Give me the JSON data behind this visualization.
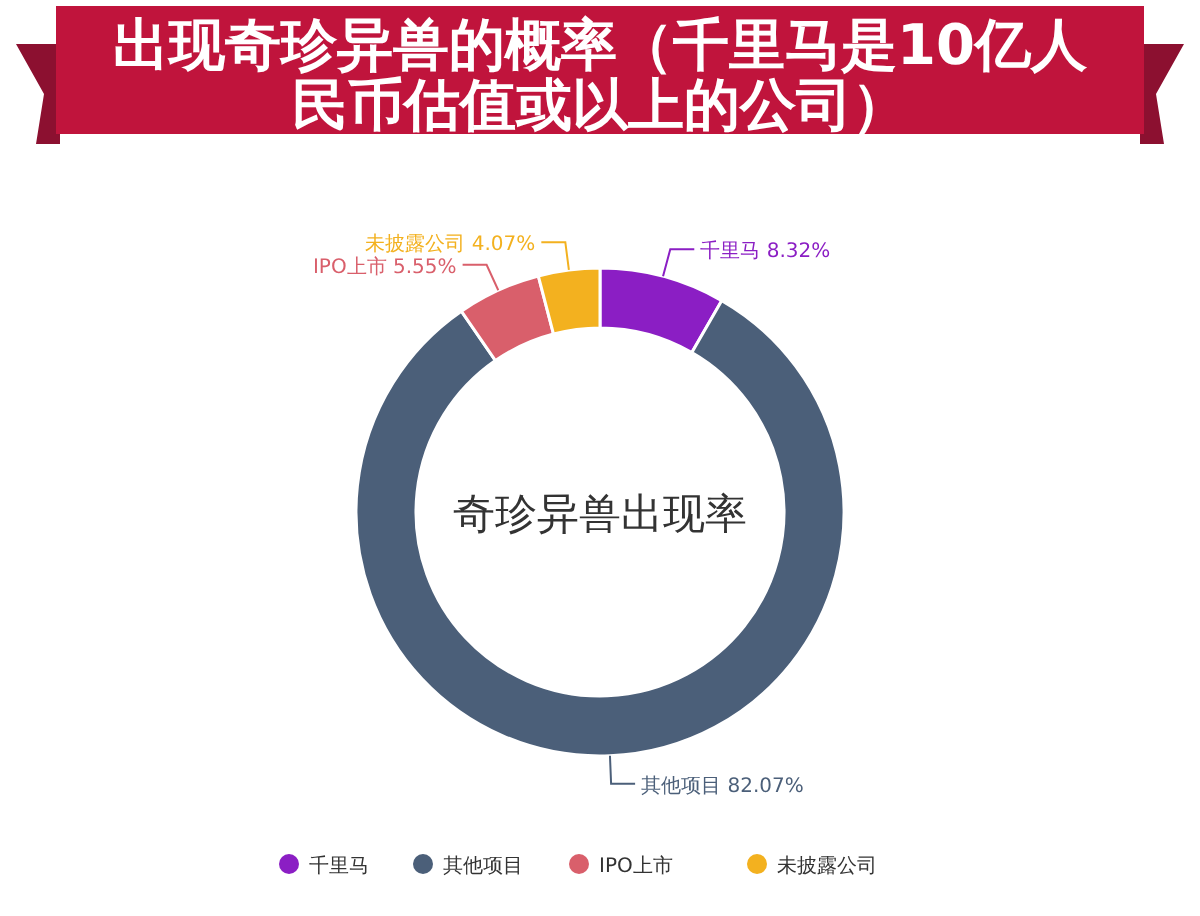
{
  "chart_data": {
    "type": "donut",
    "title": "出现奇珍异兽的概率（千里马是10亿人民币估值或以上的公司）",
    "categories": [
      "千里马",
      "其他项目",
      "IPO上市",
      "未披露公司"
    ],
    "values": [
      8.32,
      82.07,
      5.55,
      4.07
    ],
    "colors": [
      "#8b1ec4",
      "#4b5f79",
      "#d95f6b",
      "#f3b11f"
    ],
    "annotations": [
      "奇珍异兽出现率"
    ],
    "value_labels": [
      "8.32%",
      "82.07%",
      "5.55%",
      "4.07%"
    ],
    "legend": "bottom"
  }
}
